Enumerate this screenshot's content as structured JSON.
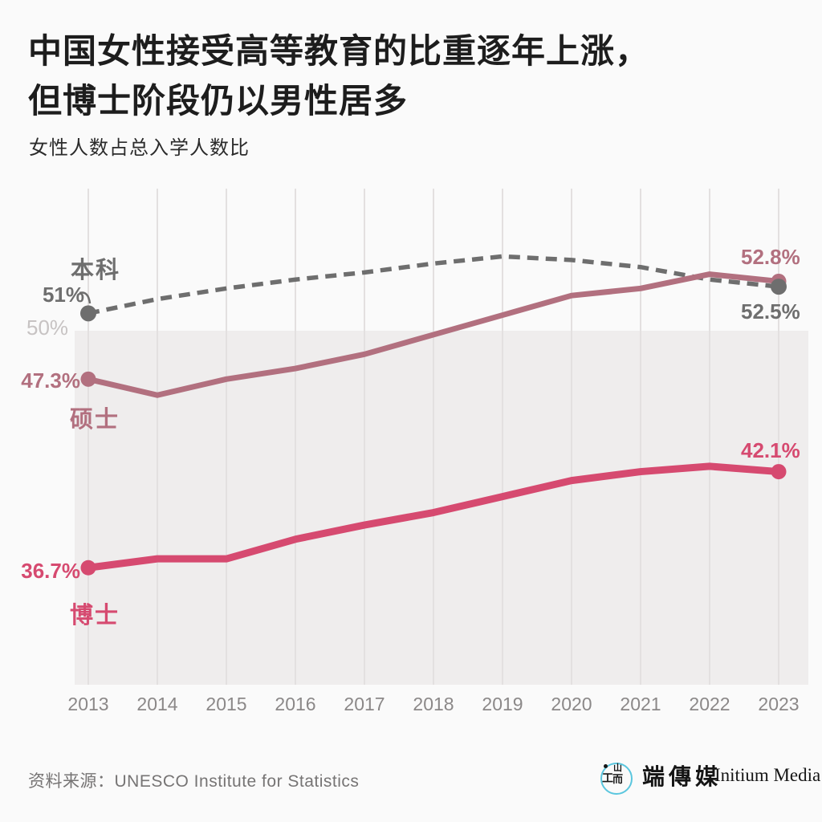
{
  "page": {
    "title_line1": "中国女性接受高等教育的比重逐年上涨，",
    "title_line2": "但博士阶段仍以男性居多",
    "subtitle": "女性人数占总入学人数比",
    "source": "资料来源：UNESCO Institute for Statistics",
    "brand": {
      "cjk": "端傳媒",
      "en": "Initium Media",
      "logo_circle_color": "#5ac6de",
      "logo_glyph_parts": [
        "工",
        "山",
        "而"
      ]
    }
  },
  "chart_data": {
    "type": "line",
    "title": "女性人数占总入学人数比",
    "x": [
      "2013",
      "2014",
      "2015",
      "2016",
      "2017",
      "2018",
      "2019",
      "2020",
      "2021",
      "2022",
      "2023"
    ],
    "x_range": [
      2013,
      2023
    ],
    "ylim": [
      30,
      58
    ],
    "grid": "vertical-only",
    "legend_position": "inline-labels",
    "shaded_below_value": 50,
    "gridline_label": {
      "text": "50%",
      "value": 50
    },
    "series": [
      {
        "name": "本科",
        "line_style": "dashed",
        "color": "#6e6e6e",
        "values": [
          51.0,
          51.8,
          52.4,
          52.9,
          53.3,
          53.8,
          54.2,
          54.0,
          53.6,
          52.9,
          52.5
        ],
        "first_point_label": "51%",
        "last_point_label": "52.5%"
      },
      {
        "name": "硕士",
        "line_style": "solid",
        "color": "#b2707f",
        "values": [
          47.3,
          46.4,
          47.3,
          47.9,
          48.7,
          49.8,
          50.9,
          52.0,
          52.4,
          53.2,
          52.8
        ],
        "first_point_label": "47.3%",
        "last_point_label": "52.8%"
      },
      {
        "name": "博士",
        "line_style": "solid",
        "color": "#d64a70",
        "values": [
          36.7,
          37.2,
          37.2,
          38.3,
          39.1,
          39.8,
          40.7,
          41.6,
          42.1,
          42.4,
          42.1
        ],
        "first_point_label": "36.7%",
        "last_point_label": "42.1%"
      }
    ]
  }
}
